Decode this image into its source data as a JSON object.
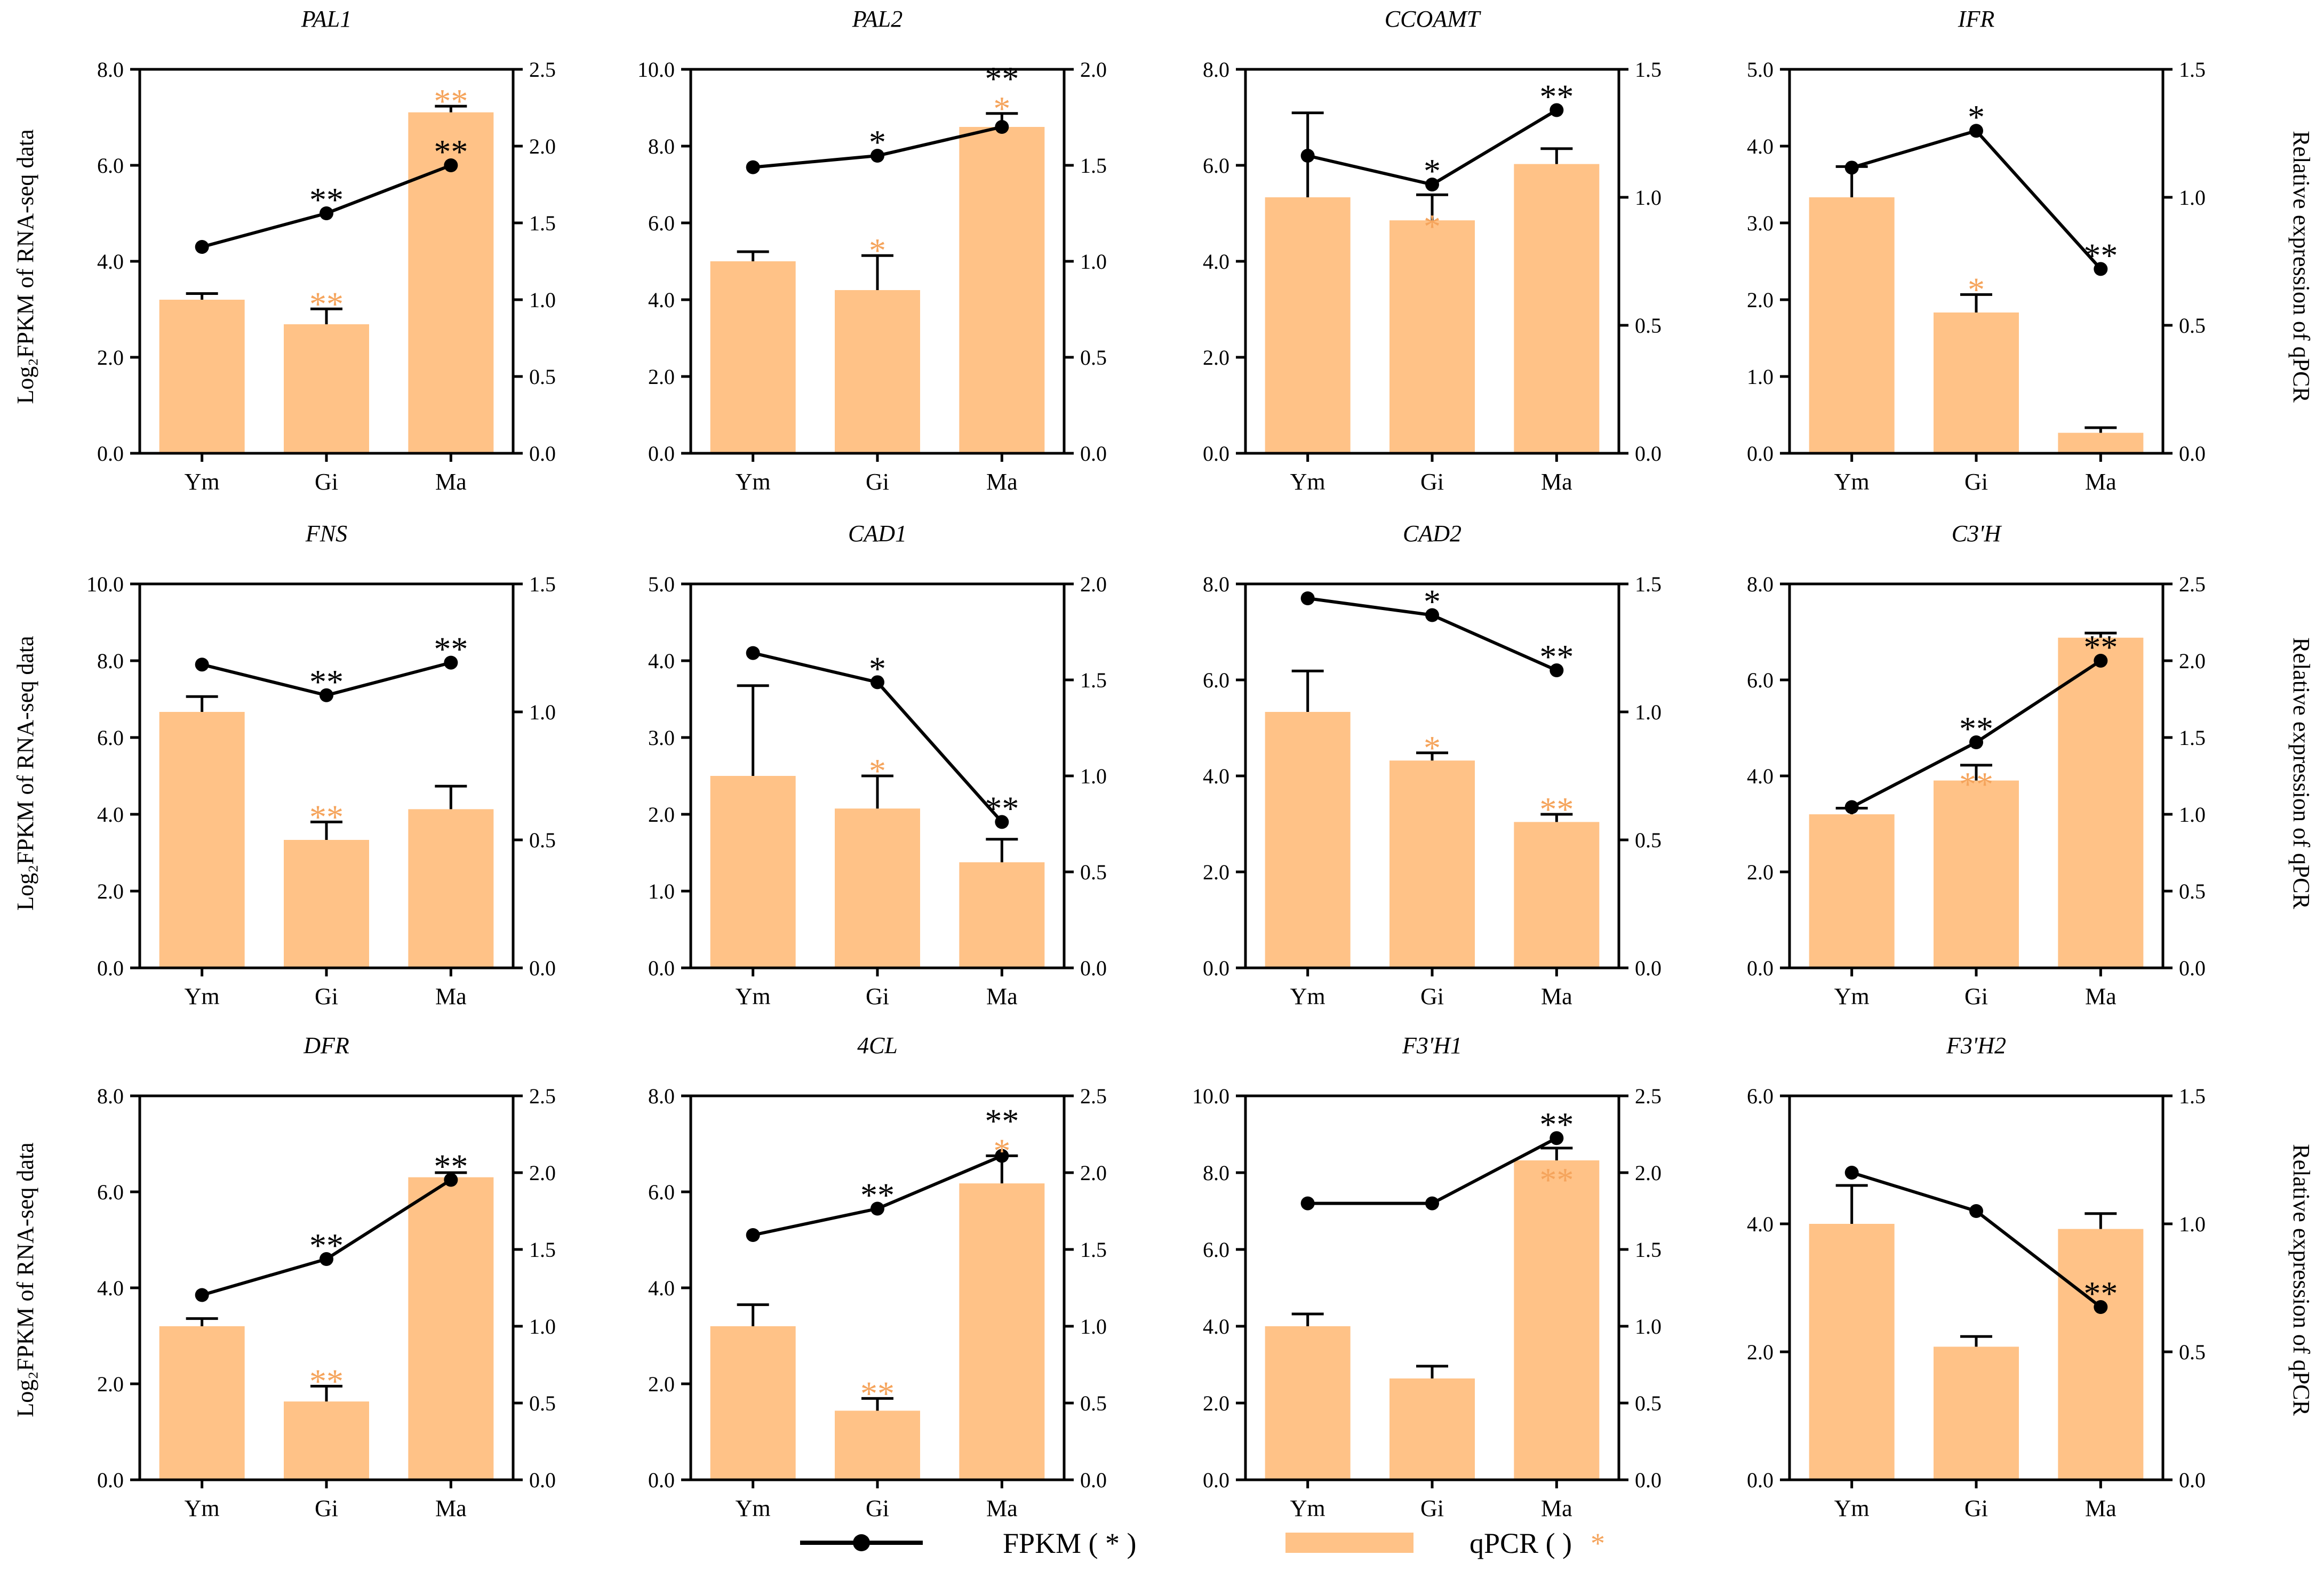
{
  "figure": {
    "left_axis_label": "Log₂FPKM of RNA-seq data",
    "right_axis_label": "Relative expression of qPCR",
    "legend": {
      "fpkm": "FPKM ( * )",
      "fpkm_marker": "*",
      "qpcr": "qPCR (   )",
      "qpcr_marker": "*"
    },
    "colors": {
      "bar": "#FFC287",
      "sig_qpcr": "#F5A45C",
      "line": "#000000"
    }
  },
  "chart_data": [
    {
      "type": "bar+line",
      "title": "PAL1",
      "categories": [
        "Ym",
        "Gi",
        "Ma"
      ],
      "left": {
        "min": 0,
        "max": 8,
        "ticks": [
          "0.0",
          "2.0",
          "4.0",
          "6.0",
          "8.0"
        ]
      },
      "right": {
        "min": 0,
        "max": 2.5,
        "ticks": [
          "0.0",
          "0.5",
          "1.0",
          "1.5",
          "2.0",
          "2.5"
        ]
      },
      "fpkm": [
        4.3,
        5.0,
        6.0
      ],
      "qpcr": [
        1.0,
        0.84,
        2.22
      ],
      "qpcr_err": [
        0.04,
        0.1,
        0.04
      ],
      "fpkm_sig": [
        "",
        "**",
        "**"
      ],
      "qpcr_sig": [
        "",
        "**",
        "**"
      ]
    },
    {
      "type": "bar+line",
      "title": "PAL2",
      "categories": [
        "Ym",
        "Gi",
        "Ma"
      ],
      "left": {
        "min": 0,
        "max": 10,
        "ticks": [
          "0.0",
          "2.0",
          "4.0",
          "6.0",
          "8.0",
          "10.0"
        ]
      },
      "right": {
        "min": 0,
        "max": 2,
        "ticks": [
          "0.0",
          "0.5",
          "1.0",
          "1.5",
          "2.0"
        ]
      },
      "fpkm": [
        7.45,
        7.75,
        8.5
      ],
      "qpcr": [
        1.0,
        0.85,
        1.7
      ],
      "qpcr_err": [
        0.05,
        0.18,
        0.07
      ],
      "fpkm_sig": [
        "",
        "*",
        "**"
      ],
      "qpcr_sig": [
        "",
        "*",
        "*"
      ]
    },
    {
      "type": "bar+line",
      "title": "CCOAMT",
      "categories": [
        "Ym",
        "Gi",
        "Ma"
      ],
      "left": {
        "min": 0,
        "max": 8,
        "ticks": [
          "0.0",
          "2.0",
          "4.0",
          "6.0",
          "8.0"
        ]
      },
      "right": {
        "min": 0,
        "max": 1.5,
        "ticks": [
          "0.0",
          "0.5",
          "1.0",
          "1.5"
        ]
      },
      "fpkm": [
        6.2,
        5.6,
        7.15
      ],
      "qpcr": [
        1.0,
        0.91,
        1.13
      ],
      "qpcr_err": [
        0.33,
        0.1,
        0.06
      ],
      "fpkm_sig": [
        "",
        "*",
        "**"
      ],
      "qpcr_sig": [
        "",
        "*",
        ""
      ]
    },
    {
      "type": "bar+line",
      "title": "IFR",
      "categories": [
        "Ym",
        "Gi",
        "Ma"
      ],
      "left": {
        "min": 0,
        "max": 5,
        "ticks": [
          "0.0",
          "1.0",
          "2.0",
          "3.0",
          "4.0",
          "5.0"
        ]
      },
      "right": {
        "min": 0,
        "max": 1.5,
        "ticks": [
          "0.0",
          "0.5",
          "1.0",
          "1.5"
        ]
      },
      "fpkm": [
        3.72,
        4.2,
        2.4
      ],
      "qpcr": [
        1.0,
        0.55,
        0.08
      ],
      "qpcr_err": [
        0.12,
        0.07,
        0.02
      ],
      "fpkm_sig": [
        "",
        "*",
        "**"
      ],
      "qpcr_sig": [
        "",
        "*",
        ""
      ]
    },
    {
      "type": "bar+line",
      "title": "FNS",
      "categories": [
        "Ym",
        "Gi",
        "Ma"
      ],
      "left": {
        "min": 0,
        "max": 10,
        "ticks": [
          "0.0",
          "2.0",
          "4.0",
          "6.0",
          "8.0",
          "10.0"
        ]
      },
      "right": {
        "min": 0,
        "max": 1.5,
        "ticks": [
          "0.0",
          "0.5",
          "1.0",
          "1.5"
        ]
      },
      "fpkm": [
        7.9,
        7.1,
        7.95
      ],
      "qpcr": [
        1.0,
        0.5,
        0.62
      ],
      "qpcr_err": [
        0.06,
        0.07,
        0.09
      ],
      "fpkm_sig": [
        "",
        "**",
        "**"
      ],
      "qpcr_sig": [
        "",
        "**",
        ""
      ]
    },
    {
      "type": "bar+line",
      "title": "CAD1",
      "categories": [
        "Ym",
        "Gi",
        "Ma"
      ],
      "left": {
        "min": 0,
        "max": 5,
        "ticks": [
          "0.0",
          "1.0",
          "2.0",
          "3.0",
          "4.0",
          "5.0"
        ]
      },
      "right": {
        "min": 0,
        "max": 2,
        "ticks": [
          "0.0",
          "0.5",
          "1.0",
          "1.5",
          "2.0"
        ]
      },
      "fpkm": [
        4.1,
        3.72,
        1.9
      ],
      "qpcr": [
        1.0,
        0.83,
        0.55
      ],
      "qpcr_err": [
        0.47,
        0.17,
        0.12
      ],
      "fpkm_sig": [
        "",
        "*",
        "**"
      ],
      "qpcr_sig": [
        "",
        "*",
        ""
      ]
    },
    {
      "type": "bar+line",
      "title": "CAD2",
      "categories": [
        "Ym",
        "Gi",
        "Ma"
      ],
      "left": {
        "min": 0,
        "max": 8,
        "ticks": [
          "0.0",
          "2.0",
          "4.0",
          "6.0",
          "8.0"
        ]
      },
      "right": {
        "min": 0,
        "max": 1.5,
        "ticks": [
          "0.0",
          "0.5",
          "1.0",
          "1.5"
        ]
      },
      "fpkm": [
        7.7,
        7.35,
        6.2
      ],
      "qpcr": [
        1.0,
        0.81,
        0.57
      ],
      "qpcr_err": [
        0.16,
        0.03,
        0.03
      ],
      "fpkm_sig": [
        "",
        "*",
        "**"
      ],
      "qpcr_sig": [
        "",
        "*",
        "**"
      ]
    },
    {
      "type": "bar+line",
      "title": "C3'H",
      "categories": [
        "Ym",
        "Gi",
        "Ma"
      ],
      "left": {
        "min": 0,
        "max": 8,
        "ticks": [
          "0.0",
          "2.0",
          "4.0",
          "6.0",
          "8.0"
        ]
      },
      "right": {
        "min": 0,
        "max": 2.5,
        "ticks": [
          "0.0",
          "0.5",
          "1.0",
          "1.5",
          "2.0",
          "2.5"
        ]
      },
      "fpkm": [
        3.35,
        4.7,
        6.4
      ],
      "qpcr": [
        1.0,
        1.22,
        2.15
      ],
      "qpcr_err": [
        0.04,
        0.1,
        0.03
      ],
      "fpkm_sig": [
        "",
        "**",
        "**"
      ],
      "qpcr_sig": [
        "",
        "**",
        ""
      ]
    },
    {
      "type": "bar+line",
      "title": "DFR",
      "categories": [
        "Ym",
        "Gi",
        "Ma"
      ],
      "left": {
        "min": 0,
        "max": 8,
        "ticks": [
          "0.0",
          "2.0",
          "4.0",
          "6.0",
          "8.0"
        ]
      },
      "right": {
        "min": 0,
        "max": 2.5,
        "ticks": [
          "0.0",
          "0.5",
          "1.0",
          "1.5",
          "2.0",
          "2.5"
        ]
      },
      "fpkm": [
        3.85,
        4.6,
        6.25
      ],
      "qpcr": [
        1.0,
        0.51,
        1.97
      ],
      "qpcr_err": [
        0.05,
        0.1,
        0.03
      ],
      "fpkm_sig": [
        "",
        "**",
        "**"
      ],
      "qpcr_sig": [
        "",
        "**",
        ""
      ]
    },
    {
      "type": "bar+line",
      "title": "4CL",
      "categories": [
        "Ym",
        "Gi",
        "Ma"
      ],
      "left": {
        "min": 0,
        "max": 8,
        "ticks": [
          "0.0",
          "2.0",
          "4.0",
          "6.0",
          "8.0"
        ]
      },
      "right": {
        "min": 0,
        "max": 2.5,
        "ticks": [
          "0.0",
          "0.5",
          "1.0",
          "1.5",
          "2.0",
          "2.5"
        ]
      },
      "fpkm": [
        5.1,
        5.65,
        6.75
      ],
      "qpcr": [
        1.0,
        0.45,
        1.93
      ],
      "qpcr_err": [
        0.14,
        0.08,
        0.18
      ],
      "fpkm_sig": [
        "",
        "**",
        "**"
      ],
      "qpcr_sig": [
        "",
        "**",
        "*"
      ]
    },
    {
      "type": "bar+line",
      "title": "F3'H1",
      "categories": [
        "Ym",
        "Gi",
        "Ma"
      ],
      "left": {
        "min": 0,
        "max": 10,
        "ticks": [
          "0.0",
          "2.0",
          "4.0",
          "6.0",
          "8.0",
          "10.0"
        ]
      },
      "right": {
        "min": 0,
        "max": 2.5,
        "ticks": [
          "0.0",
          "0.5",
          "1.0",
          "1.5",
          "2.0",
          "2.5"
        ]
      },
      "fpkm": [
        7.2,
        7.2,
        8.9
      ],
      "qpcr": [
        1.0,
        0.66,
        2.08
      ],
      "qpcr_err": [
        0.08,
        0.08,
        0.08
      ],
      "fpkm_sig": [
        "",
        "",
        "**"
      ],
      "qpcr_sig": [
        "",
        "",
        "**"
      ]
    },
    {
      "type": "bar+line",
      "title": "F3'H2",
      "categories": [
        "Ym",
        "Gi",
        "Ma"
      ],
      "left": {
        "min": 0,
        "max": 6,
        "ticks": [
          "0.0",
          "2.0",
          "4.0",
          "6.0"
        ]
      },
      "right": {
        "min": 0,
        "max": 1.5,
        "ticks": [
          "0.0",
          "0.5",
          "1.0",
          "1.5"
        ]
      },
      "fpkm": [
        4.8,
        4.2,
        2.7
      ],
      "qpcr": [
        1.0,
        0.52,
        0.98
      ],
      "qpcr_err": [
        0.15,
        0.04,
        0.06
      ],
      "fpkm_sig": [
        "",
        "",
        "**"
      ],
      "qpcr_sig": [
        "",
        "",
        ""
      ]
    }
  ]
}
